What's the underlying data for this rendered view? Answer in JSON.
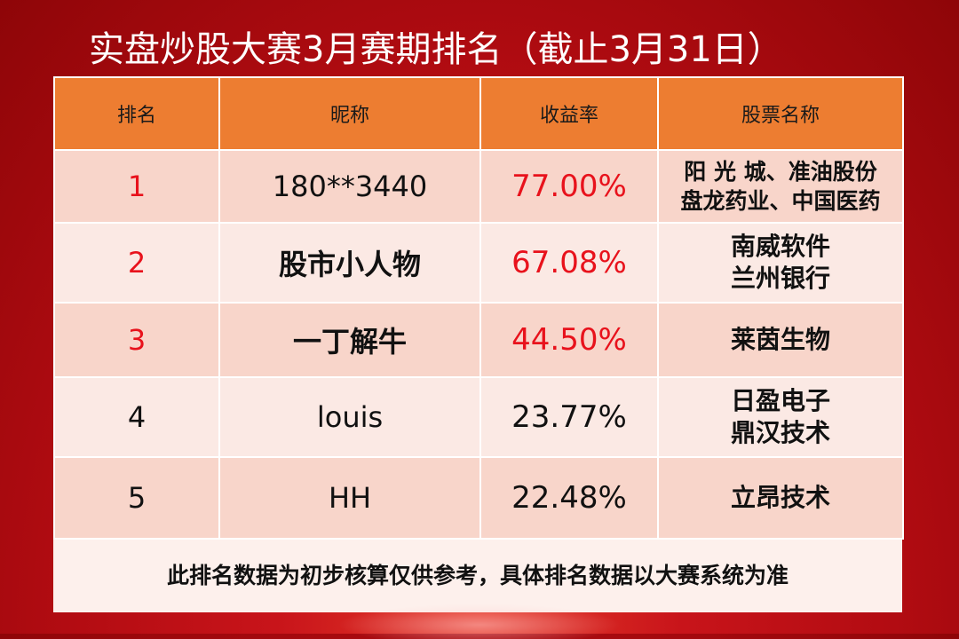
{
  "title": "实盘炒股大赛3月赛期排名（截止3月31日）",
  "table": {
    "headers": [
      "排名",
      "昵称",
      "收益率",
      "股票名称"
    ],
    "rows": [
      {
        "rank": "1",
        "nickname": "180**3440",
        "return": "77.00%",
        "stocks": [
          "阳 光 城、准油股份",
          "盘龙药业、中国医药"
        ]
      },
      {
        "rank": "2",
        "nickname": "股市小人物",
        "return": "67.08%",
        "stocks": [
          "南威软件",
          "兰州银行"
        ]
      },
      {
        "rank": "3",
        "nickname": "一丁解牛",
        "return": "44.50%",
        "stocks": [
          "莱茵生物"
        ]
      },
      {
        "rank": "4",
        "nickname": "louis",
        "return": "23.77%",
        "stocks": [
          "日盈电子",
          "鼎汉技术"
        ]
      },
      {
        "rank": "5",
        "nickname": "HH",
        "return": "22.48%",
        "stocks": [
          "立昂技术"
        ]
      }
    ]
  },
  "note": "此排名数据为初步核算仅供参考，具体排名数据以大赛系统为准",
  "colors": {
    "header_bg": "#ed7d31",
    "highlight": "#e8121c",
    "background": "#b30c12"
  }
}
